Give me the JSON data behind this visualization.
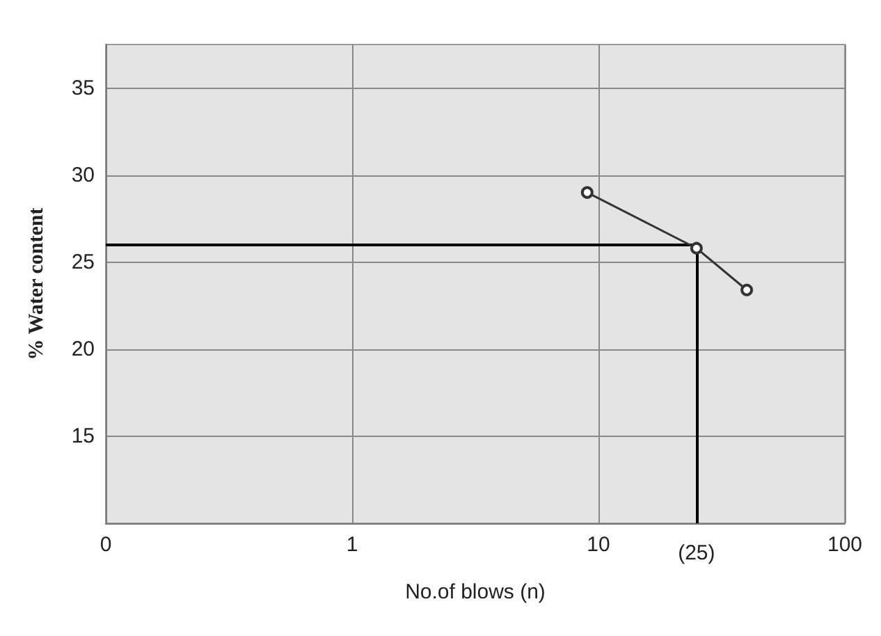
{
  "chart_data": {
    "type": "line",
    "xlabel": "No.of blows (n)",
    "ylabel": "% Water content",
    "x": [
      9,
      25,
      40
    ],
    "series": [
      {
        "color": "#333333",
        "values": [
          29.0,
          25.8,
          23.4
        ]
      }
    ],
    "log": "x",
    "xlim": [
      0.1,
      100
    ],
    "xticks": [
      {
        "value": 0.1,
        "label": "0"
      },
      1,
      10,
      100
    ],
    "ylim": [
      10,
      37.5
    ],
    "yticks": [
      15,
      20,
      25,
      30,
      35
    ],
    "ref_lines": [
      {
        "axis": "y",
        "value": 26,
        "label": null,
        "color": "#000000"
      },
      {
        "axis": "x",
        "value": 25,
        "label": "(25)",
        "color": "#000000"
      }
    ],
    "grid": true,
    "marker": "circle",
    "line_style": "solid"
  }
}
